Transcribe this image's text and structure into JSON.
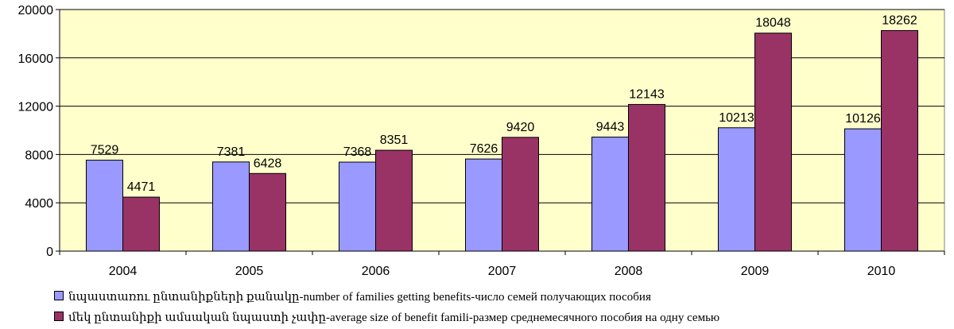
{
  "chart_data": {
    "type": "bar",
    "categories": [
      "2004",
      "2005",
      "2006",
      "2007",
      "2008",
      "2009",
      "2010"
    ],
    "series": [
      {
        "name": "նպաստառու ընտանիքների քանակը-number of families getting benefits-число семей получающих пособия",
        "values": [
          7529,
          7381,
          7368,
          7626,
          9443,
          10213,
          10126
        ],
        "color": "#9999ff"
      },
      {
        "name": "մեկ ընտանիքի ամսական նպաստի չափը-average size of benefit famili-размер среднемесячного пособия на одну семью",
        "values": [
          4471,
          6428,
          8351,
          9420,
          12143,
          18048,
          18262
        ],
        "color": "#993366"
      }
    ],
    "ylim": [
      0,
      20000
    ],
    "yticks": [
      "0",
      "4000",
      "8000",
      "12000",
      "16000",
      "20000"
    ],
    "grid": true,
    "plot_background": "#ffffcc",
    "legend_position": "bottom-left"
  }
}
